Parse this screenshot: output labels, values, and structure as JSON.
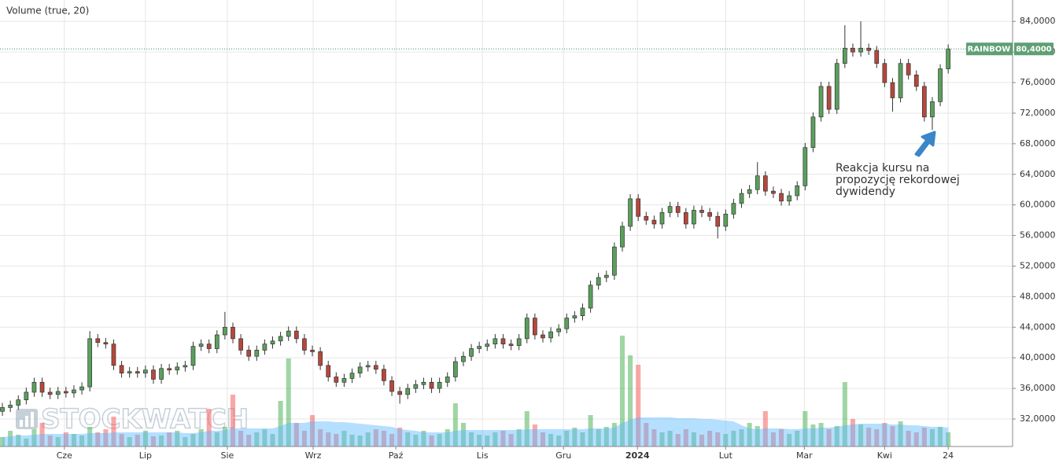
{
  "chart_data": {
    "type": "candlestick",
    "title": "Volume (true, 20)",
    "watermark": "STOCKWATCH",
    "symbol": "RAINBOW",
    "last_price": {
      "value": 80.4,
      "label": "80,4000"
    },
    "annotation": [
      "Reakcja kursu na",
      "propozycję rekordowej",
      "dywidendy"
    ],
    "grid": true,
    "up_color": "#5aa05c",
    "down_color": "#b8463c",
    "volume_up_color": "rgba(80,180,90,0.55)",
    "volume_down_color": "rgba(245,95,95,0.55)",
    "volume_ma_color": "rgba(90,185,255,0.45)",
    "xlim": [
      -0.3,
      127.1
    ],
    "xticks": [
      {
        "value": 7.8,
        "label": "Cze"
      },
      {
        "value": 18.0,
        "label": "Lip"
      },
      {
        "value": 28.3,
        "label": "Sie"
      },
      {
        "value": 39.1,
        "label": "Wrz"
      },
      {
        "value": 49.5,
        "label": "Paź"
      },
      {
        "value": 60.4,
        "label": "Lis"
      },
      {
        "value": 70.6,
        "label": "Gru"
      },
      {
        "value": 79.9,
        "label": "2024"
      },
      {
        "value": 91.0,
        "label": "Lut"
      },
      {
        "value": 100.9,
        "label": "Mar"
      },
      {
        "value": 111.0,
        "label": "Kwi"
      },
      {
        "value": 119.0,
        "label": "24"
      }
    ],
    "ylim": [
      28.4,
      86.8
    ],
    "yticks": [
      {
        "value": 32,
        "label": "32,0000"
      },
      {
        "value": 36,
        "label": "36,0000"
      },
      {
        "value": 40,
        "label": "40,0000"
      },
      {
        "value": 44,
        "label": "44,0000"
      },
      {
        "value": 48,
        "label": "48,0000"
      },
      {
        "value": 52,
        "label": "52,0000"
      },
      {
        "value": 56,
        "label": "56,0000"
      },
      {
        "value": 60,
        "label": "60,0000"
      },
      {
        "value": 64,
        "label": "64,0000"
      },
      {
        "value": 68,
        "label": "68,0000"
      },
      {
        "value": 72,
        "label": "72,0000"
      },
      {
        "value": 76,
        "label": "76,0000"
      },
      {
        "value": 80,
        "label": "80,0000"
      },
      {
        "value": 84,
        "label": "84,0000"
      }
    ],
    "open": [
      33.0,
      33.5,
      33.8,
      34.5,
      35.5,
      36.8,
      35.5,
      35.2,
      35.6,
      35.4,
      35.8,
      36.2,
      42.5,
      42.0,
      41.8,
      39.0,
      38.0,
      38.2,
      38.0,
      38.4,
      37.2,
      38.6,
      38.4,
      38.8,
      39.0,
      41.5,
      41.8,
      41.2,
      43.0,
      44.0,
      42.5,
      41.0,
      40.2,
      41.0,
      41.8,
      42.2,
      42.8,
      43.5,
      42.5,
      41.0,
      40.8,
      39.0,
      37.5,
      36.8,
      37.3,
      38.0,
      38.8,
      39.0,
      38.5,
      37.0,
      35.6,
      35.2,
      36.0,
      36.5,
      36.8,
      36.0,
      36.8,
      37.5,
      39.5,
      40.2,
      41.2,
      41.5,
      41.8,
      42.5,
      41.8,
      41.6,
      42.5,
      45.2,
      43.0,
      42.6,
      43.4,
      43.8,
      45.2,
      45.5,
      46.5,
      49.5,
      50.5,
      50.8,
      54.5,
      57.2,
      60.8,
      58.5,
      58.0,
      57.5,
      59.0,
      59.8,
      59.0,
      57.5,
      59.3,
      59.0,
      58.5,
      57.2,
      58.8,
      60.2,
      61.5,
      62.0,
      63.8,
      61.8,
      61.5,
      60.5,
      61.2,
      62.5,
      67.5,
      71.5,
      75.5,
      72.5,
      78.5,
      80.5,
      80.0,
      80.5,
      80.2,
      78.5,
      76.0,
      74.0,
      78.5,
      77.0,
      75.5,
      71.5,
      73.5,
      77.8
    ],
    "high": [
      34.1,
      34.4,
      35.1,
      36.1,
      37.4,
      37.4,
      36.1,
      36.2,
      36.2,
      36.4,
      36.8,
      43.5,
      43.1,
      42.6,
      42.4,
      39.6,
      38.8,
      38.8,
      39.0,
      39.0,
      39.2,
      39.2,
      39.4,
      39.6,
      42.1,
      42.4,
      42.4,
      43.6,
      46.0,
      44.6,
      43.1,
      41.6,
      41.6,
      42.4,
      42.8,
      43.4,
      44.1,
      44.1,
      43.1,
      41.6,
      41.4,
      39.6,
      38.1,
      37.9,
      38.6,
      39.4,
      39.6,
      39.6,
      39.1,
      37.6,
      36.2,
      36.6,
      37.1,
      37.4,
      37.4,
      37.4,
      38.1,
      40.1,
      40.8,
      41.8,
      42.1,
      42.4,
      43.1,
      43.1,
      42.4,
      43.1,
      45.8,
      45.8,
      43.6,
      44.0,
      44.4,
      45.8,
      46.1,
      47.1,
      50.1,
      51.1,
      51.4,
      55.1,
      57.8,
      61.4,
      61.4,
      59.1,
      58.6,
      59.6,
      60.4,
      60.4,
      59.6,
      59.9,
      59.9,
      59.6,
      59.1,
      59.4,
      60.8,
      62.1,
      62.6,
      65.6,
      64.4,
      62.4,
      62.1,
      61.8,
      63.1,
      68.1,
      72.1,
      76.1,
      76.1,
      79.1,
      83.5,
      81.1,
      84.0,
      81.1,
      80.8,
      79.1,
      76.6,
      79.1,
      79.1,
      77.6,
      76.1,
      74.1,
      78.4,
      81.0
    ],
    "low": [
      32.4,
      32.9,
      33.2,
      33.9,
      34.9,
      34.9,
      34.6,
      34.6,
      34.8,
      34.8,
      35.2,
      35.6,
      41.4,
      41.2,
      38.4,
      37.4,
      37.4,
      37.4,
      37.4,
      36.6,
      36.6,
      37.8,
      37.8,
      38.2,
      38.4,
      40.9,
      40.6,
      40.6,
      42.4,
      41.9,
      40.4,
      39.6,
      39.6,
      40.4,
      41.2,
      41.6,
      42.2,
      41.9,
      40.4,
      40.2,
      38.4,
      36.9,
      36.2,
      36.2,
      36.7,
      37.4,
      38.2,
      37.9,
      36.4,
      35.0,
      34.0,
      34.6,
      35.4,
      35.9,
      35.4,
      35.4,
      36.2,
      36.9,
      38.9,
      39.6,
      40.6,
      40.9,
      41.2,
      41.2,
      41.0,
      41.0,
      41.9,
      42.4,
      42.0,
      42.0,
      42.8,
      43.2,
      44.6,
      44.9,
      45.9,
      48.9,
      49.9,
      50.2,
      53.9,
      56.6,
      57.9,
      57.4,
      56.9,
      56.9,
      58.4,
      58.4,
      56.9,
      56.9,
      58.4,
      57.9,
      55.6,
      56.6,
      58.2,
      59.6,
      60.9,
      61.4,
      61.2,
      60.9,
      59.9,
      59.9,
      60.6,
      61.9,
      66.9,
      70.9,
      71.9,
      71.9,
      77.9,
      79.4,
      79.4,
      79.6,
      77.9,
      75.4,
      72.2,
      73.4,
      76.4,
      74.9,
      70.9,
      69.8,
      72.9,
      77.2
    ],
    "close": [
      33.5,
      33.8,
      34.5,
      35.5,
      36.8,
      35.5,
      35.2,
      35.6,
      35.4,
      35.8,
      36.2,
      42.5,
      42.0,
      41.8,
      39.0,
      38.0,
      38.2,
      38.0,
      38.4,
      37.2,
      38.6,
      38.4,
      38.8,
      39.0,
      41.5,
      41.8,
      41.2,
      43.0,
      44.0,
      42.5,
      41.0,
      40.2,
      41.0,
      41.8,
      42.2,
      42.8,
      43.5,
      42.5,
      41.0,
      40.8,
      39.0,
      37.5,
      36.8,
      37.3,
      38.0,
      38.8,
      39.0,
      38.5,
      37.0,
      35.6,
      35.2,
      36.0,
      36.5,
      36.8,
      36.0,
      36.8,
      37.5,
      39.5,
      40.2,
      41.2,
      41.5,
      41.8,
      42.5,
      41.8,
      41.6,
      42.5,
      45.2,
      43.0,
      42.6,
      43.4,
      43.8,
      45.2,
      45.5,
      46.5,
      49.5,
      50.5,
      50.8,
      54.5,
      57.2,
      60.8,
      58.5,
      58.0,
      57.5,
      59.0,
      59.8,
      59.0,
      57.5,
      59.3,
      59.0,
      58.5,
      57.2,
      58.8,
      60.2,
      61.5,
      62.0,
      63.8,
      61.8,
      61.5,
      60.5,
      61.2,
      62.5,
      67.5,
      71.5,
      75.5,
      72.5,
      78.5,
      80.5,
      80.0,
      80.5,
      80.2,
      78.5,
      76.0,
      74.0,
      78.5,
      77.0,
      75.5,
      71.5,
      73.5,
      77.8,
      80.4
    ],
    "volume": [
      12,
      20,
      15,
      10,
      22,
      30,
      14,
      12,
      18,
      16,
      14,
      25,
      18,
      22,
      38,
      16,
      12,
      15,
      20,
      13,
      14,
      18,
      20,
      12,
      16,
      22,
      48,
      18,
      25,
      66,
      20,
      15,
      18,
      22,
      16,
      58,
      112,
      30,
      20,
      40,
      22,
      18,
      16,
      20,
      15,
      14,
      18,
      22,
      20,
      16,
      24,
      18,
      15,
      20,
      14,
      16,
      22,
      55,
      30,
      18,
      15,
      14,
      18,
      20,
      16,
      22,
      45,
      28,
      18,
      16,
      14,
      20,
      24,
      18,
      40,
      22,
      25,
      30,
      141,
      116,
      104,
      30,
      22,
      18,
      20,
      16,
      22,
      18,
      15,
      20,
      18,
      16,
      20,
      22,
      30,
      26,
      45,
      18,
      22,
      16,
      20,
      45,
      28,
      30,
      22,
      26,
      82,
      35,
      28,
      24,
      22,
      30,
      26,
      32,
      20,
      18,
      24,
      22,
      25,
      18
    ],
    "volume_ma": [
      12,
      13,
      14,
      14,
      15,
      16,
      16,
      16,
      16,
      16,
      16,
      17,
      17,
      17,
      18,
      18,
      18,
      18,
      18,
      18,
      18,
      18,
      18,
      17,
      17,
      18,
      20,
      20,
      21,
      23,
      23,
      23,
      23,
      23,
      23,
      26,
      30,
      30,
      30,
      32,
      32,
      32,
      31,
      31,
      30,
      29,
      28,
      27,
      26,
      25,
      22,
      21,
      20,
      18,
      18,
      18,
      18,
      20,
      21,
      21,
      21,
      21,
      21,
      21,
      21,
      21,
      22,
      22,
      22,
      22,
      22,
      22,
      22,
      22,
      23,
      23,
      23,
      24,
      30,
      34,
      37,
      37,
      37,
      37,
      37,
      36,
      36,
      36,
      35,
      35,
      34,
      33,
      32,
      27,
      23,
      22,
      23,
      23,
      23,
      22,
      22,
      23,
      23,
      24,
      24,
      25,
      27,
      28,
      29,
      29,
      29,
      29,
      28,
      28,
      27,
      27,
      26,
      25,
      25,
      24
    ]
  }
}
